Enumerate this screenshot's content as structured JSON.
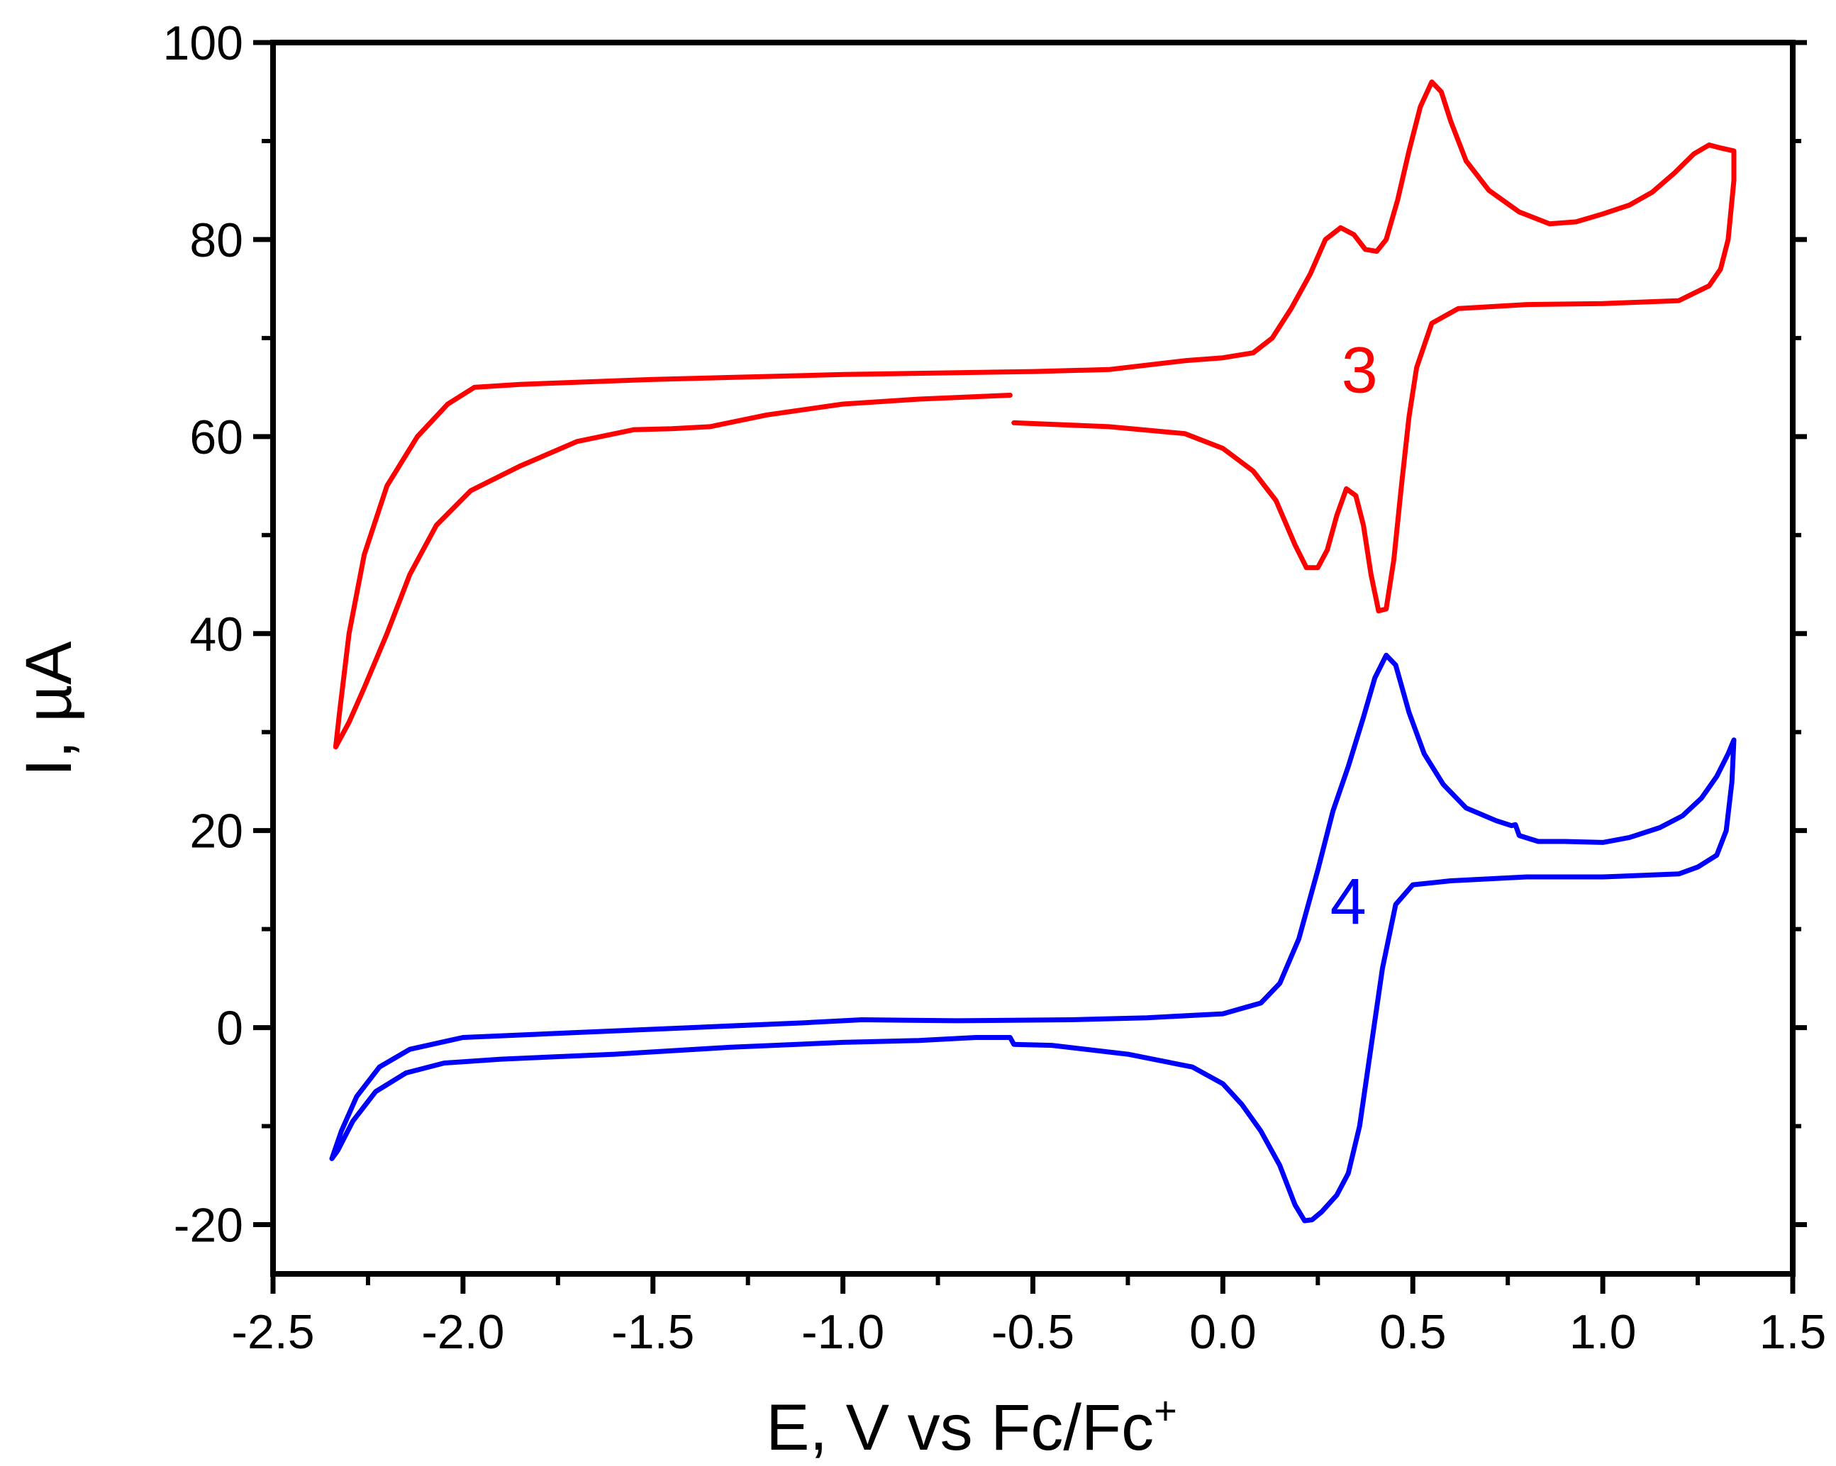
{
  "chart_data": {
    "type": "line",
    "title": "",
    "xlabel": "E, V vs Fc/Fc",
    "xlabel_sup": "+",
    "ylabel": "I, µA",
    "xlim": [
      -2.5,
      1.5
    ],
    "ylim": [
      -25,
      100
    ],
    "x_ticks": [
      -2.5,
      -2.0,
      -1.5,
      -1.0,
      -0.5,
      0.0,
      0.5,
      1.0,
      1.5
    ],
    "x_tick_labels": [
      "-2.5",
      "-2.0",
      "-1.5",
      "-1.0",
      "-0.5",
      "0.0",
      "0.5",
      "1.0",
      "1.5"
    ],
    "y_ticks": [
      -20,
      0,
      20,
      40,
      60,
      80,
      100
    ],
    "y_tick_labels": [
      "-20",
      "0",
      "20",
      "40",
      "60",
      "80",
      "100"
    ],
    "grid": false,
    "series": [
      {
        "name": "3",
        "color": "#ff0000",
        "segments": [
          [
            [
              -0.56,
              64.2
            ],
            [
              -0.8,
              63.8
            ],
            [
              -1.0,
              63.3
            ],
            [
              -1.2,
              62.2
            ],
            [
              -1.35,
              61.0
            ],
            [
              -1.45,
              60.8
            ],
            [
              -1.55,
              60.7
            ],
            [
              -1.7,
              59.5
            ],
            [
              -1.85,
              57.0
            ],
            [
              -1.98,
              54.5
            ],
            [
              -2.07,
              51.0
            ],
            [
              -2.14,
              46.0
            ],
            [
              -2.2,
              40.0
            ],
            [
              -2.26,
              34.5
            ],
            [
              -2.3,
              31.0
            ],
            [
              -2.335,
              28.5
            ],
            [
              -2.325,
              32.0
            ],
            [
              -2.3,
              40.0
            ],
            [
              -2.26,
              48.0
            ],
            [
              -2.2,
              55.0
            ],
            [
              -2.12,
              60.0
            ],
            [
              -2.04,
              63.3
            ],
            [
              -1.97,
              65.0
            ],
            [
              -1.85,
              65.3
            ],
            [
              -1.5,
              65.8
            ],
            [
              -1.0,
              66.3
            ],
            [
              -0.5,
              66.6
            ],
            [
              -0.3,
              66.8
            ],
            [
              -0.1,
              67.7
            ],
            [
              0.0,
              68.0
            ],
            [
              0.08,
              68.5
            ],
            [
              0.13,
              70.0
            ],
            [
              0.18,
              73.0
            ],
            [
              0.23,
              76.5
            ],
            [
              0.27,
              80.0
            ],
            [
              0.31,
              81.2
            ],
            [
              0.345,
              80.5
            ],
            [
              0.375,
              79.0
            ],
            [
              0.405,
              78.8
            ],
            [
              0.43,
              80.0
            ],
            [
              0.46,
              84.0
            ],
            [
              0.49,
              89.0
            ],
            [
              0.52,
              93.5
            ],
            [
              0.55,
              96.0
            ],
            [
              0.575,
              95.0
            ],
            [
              0.6,
              92.0
            ],
            [
              0.64,
              88.0
            ],
            [
              0.7,
              85.0
            ],
            [
              0.78,
              82.8
            ],
            [
              0.86,
              81.6
            ],
            [
              0.93,
              81.8
            ],
            [
              1.0,
              82.6
            ],
            [
              1.07,
              83.5
            ],
            [
              1.13,
              84.8
            ],
            [
              1.19,
              86.8
            ],
            [
              1.24,
              88.7
            ],
            [
              1.28,
              89.6
            ],
            [
              1.31,
              89.3
            ],
            [
              1.345,
              89.0
            ],
            [
              1.345,
              86.0
            ],
            [
              1.33,
              80.0
            ],
            [
              1.31,
              77.0
            ],
            [
              1.28,
              75.3
            ],
            [
              1.2,
              73.8
            ],
            [
              1.0,
              73.5
            ],
            [
              0.8,
              73.4
            ],
            [
              0.62,
              73.0
            ],
            [
              0.55,
              71.5
            ],
            [
              0.51,
              67.0
            ],
            [
              0.49,
              62.0
            ],
            [
              0.47,
              55.0
            ],
            [
              0.45,
              47.5
            ],
            [
              0.43,
              42.5
            ],
            [
              0.41,
              42.3
            ],
            [
              0.39,
              46.0
            ],
            [
              0.37,
              51.0
            ],
            [
              0.35,
              54.0
            ],
            [
              0.325,
              54.7
            ],
            [
              0.3,
              52.0
            ],
            [
              0.275,
              48.5
            ],
            [
              0.25,
              46.7
            ],
            [
              0.22,
              46.7
            ],
            [
              0.19,
              49.0
            ],
            [
              0.14,
              53.5
            ],
            [
              0.08,
              56.5
            ],
            [
              0.0,
              58.8
            ],
            [
              -0.1,
              60.3
            ],
            [
              -0.3,
              61.0
            ],
            [
              -0.55,
              61.4
            ]
          ]
        ]
      },
      {
        "name": "4",
        "color": "#0000ff",
        "segments": [
          [
            [
              -0.55,
              -1.7
            ],
            [
              -0.56,
              -1.0
            ],
            [
              -0.65,
              -1.0
            ],
            [
              -0.8,
              -1.3
            ],
            [
              -1.0,
              -1.5
            ],
            [
              -1.3,
              -2.0
            ],
            [
              -1.6,
              -2.7
            ],
            [
              -1.9,
              -3.2
            ],
            [
              -2.05,
              -3.6
            ],
            [
              -2.15,
              -4.6
            ],
            [
              -2.23,
              -6.5
            ],
            [
              -2.29,
              -9.5
            ],
            [
              -2.33,
              -12.5
            ],
            [
              -2.345,
              -13.3
            ],
            [
              -2.32,
              -10.5
            ],
            [
              -2.28,
              -7.0
            ],
            [
              -2.22,
              -4.0
            ],
            [
              -2.14,
              -2.2
            ],
            [
              -2.0,
              -1.0
            ],
            [
              -1.7,
              -0.5
            ],
            [
              -1.4,
              0.0
            ],
            [
              -1.1,
              0.5
            ],
            [
              -0.95,
              0.8
            ],
            [
              -0.7,
              0.7
            ],
            [
              -0.4,
              0.8
            ],
            [
              -0.2,
              1.0
            ],
            [
              0.0,
              1.4
            ],
            [
              0.1,
              2.5
            ],
            [
              0.15,
              4.5
            ],
            [
              0.2,
              9.0
            ],
            [
              0.25,
              16.0
            ],
            [
              0.29,
              22.0
            ],
            [
              0.33,
              26.5
            ],
            [
              0.37,
              31.5
            ],
            [
              0.4,
              35.5
            ],
            [
              0.43,
              37.8
            ],
            [
              0.455,
              36.8
            ],
            [
              0.49,
              32.0
            ],
            [
              0.53,
              27.8
            ],
            [
              0.58,
              24.7
            ],
            [
              0.64,
              22.3
            ],
            [
              0.72,
              21.0
            ],
            [
              0.76,
              20.5
            ],
            [
              0.77,
              20.6
            ],
            [
              0.78,
              19.5
            ],
            [
              0.83,
              18.9
            ],
            [
              0.9,
              18.9
            ],
            [
              1.0,
              18.8
            ],
            [
              1.07,
              19.3
            ],
            [
              1.15,
              20.3
            ],
            [
              1.21,
              21.5
            ],
            [
              1.26,
              23.3
            ],
            [
              1.3,
              25.5
            ],
            [
              1.33,
              27.8
            ],
            [
              1.345,
              29.2
            ],
            [
              1.34,
              25.0
            ],
            [
              1.325,
              20.0
            ],
            [
              1.3,
              17.5
            ],
            [
              1.25,
              16.3
            ],
            [
              1.2,
              15.6
            ],
            [
              1.0,
              15.3
            ],
            [
              0.8,
              15.3
            ],
            [
              0.6,
              14.9
            ],
            [
              0.5,
              14.5
            ],
            [
              0.455,
              12.5
            ],
            [
              0.42,
              6.0
            ],
            [
              0.39,
              -2.0
            ],
            [
              0.36,
              -10.0
            ],
            [
              0.33,
              -14.8
            ],
            [
              0.3,
              -17.0
            ],
            [
              0.26,
              -18.7
            ],
            [
              0.235,
              -19.5
            ],
            [
              0.215,
              -19.6
            ],
            [
              0.19,
              -18.0
            ],
            [
              0.15,
              -14.0
            ],
            [
              0.1,
              -10.5
            ],
            [
              0.05,
              -7.8
            ],
            [
              0.0,
              -5.7
            ],
            [
              -0.08,
              -4.0
            ],
            [
              -0.25,
              -2.7
            ],
            [
              -0.45,
              -1.8
            ],
            [
              -0.55,
              -1.7
            ]
          ]
        ]
      }
    ],
    "annotations": [
      {
        "text": "3",
        "color": "#ff0000",
        "x": 0.36,
        "y": 64.5
      },
      {
        "text": "4",
        "color": "#0000ff",
        "x": 0.33,
        "y": 10.5
      }
    ]
  }
}
